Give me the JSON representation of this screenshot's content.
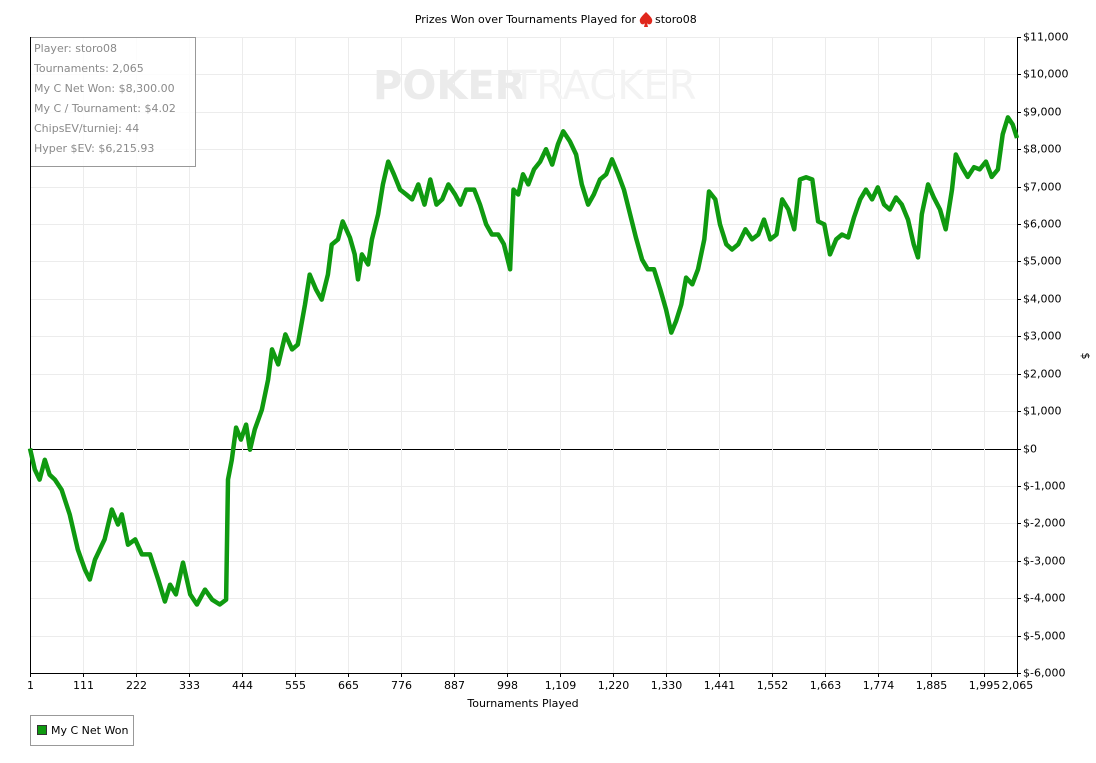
{
  "chart_data": {
    "type": "line",
    "title": "Prizes Won over Tournaments Played for",
    "player": "storo08",
    "watermark": [
      "POKER",
      "TRACKER"
    ],
    "stats_box": [
      "Player: storo08",
      "Tournaments: 2,065",
      "My C Net Won: $8,300.00",
      "My C / Tournament: $4.02",
      "ChipsEV/turniej: 44",
      "Hyper $EV: $6,215.93"
    ],
    "x_label": "Tournaments Played",
    "y_label": "$",
    "xlim": [
      1,
      2065
    ],
    "ylim": [
      -6000,
      11000
    ],
    "grid": true,
    "legend": "bottom-left",
    "xticks": [
      1,
      111,
      222,
      333,
      444,
      555,
      665,
      776,
      887,
      998,
      {
        "value": 1109,
        "label": "1,109"
      },
      {
        "value": 1220,
        "label": "1,220"
      },
      {
        "value": 1330,
        "label": "1,330"
      },
      {
        "value": 1441,
        "label": "1,441"
      },
      {
        "value": 1552,
        "label": "1,552"
      },
      {
        "value": 1663,
        "label": "1,663"
      },
      {
        "value": 1774,
        "label": "1,774"
      },
      {
        "value": 1885,
        "label": "1,885"
      },
      {
        "value": 1995,
        "label": "1,995"
      },
      {
        "value": 2065,
        "label": "2,065"
      }
    ],
    "yticks": [
      {
        "value": 11000,
        "label": "$11,000"
      },
      {
        "value": 10000,
        "label": "$10,000"
      },
      {
        "value": 9000,
        "label": "$9,000"
      },
      {
        "value": 8000,
        "label": "$8,000"
      },
      {
        "value": 7000,
        "label": "$7,000"
      },
      {
        "value": 6000,
        "label": "$6,000"
      },
      {
        "value": 5000,
        "label": "$5,000"
      },
      {
        "value": 4000,
        "label": "$4,000"
      },
      {
        "value": 3000,
        "label": "$3,000"
      },
      {
        "value": 2000,
        "label": "$2,000"
      },
      {
        "value": 1000,
        "label": "$1,000"
      },
      {
        "value": 0,
        "label": "$0"
      },
      {
        "value": -1000,
        "label": "$-1,000"
      },
      {
        "value": -2000,
        "label": "$-2,000"
      },
      {
        "value": -3000,
        "label": "$-3,000"
      },
      {
        "value": -4000,
        "label": "$-4,000"
      },
      {
        "value": -5000,
        "label": "$-5,000"
      },
      {
        "value": -6000,
        "label": "$-6,000"
      }
    ],
    "x": [
      1,
      11,
      21,
      32,
      42,
      53,
      67,
      84,
      101,
      116,
      126,
      137,
      147,
      157,
      172,
      185,
      193,
      206,
      221,
      235,
      252,
      269,
      283,
      294,
      306,
      321,
      336,
      350,
      367,
      382,
      398,
      411,
      415,
      423,
      432,
      442,
      453,
      461,
      471,
      486,
      499,
      507,
      520,
      535,
      549,
      561,
      576,
      586,
      599,
      611,
      624,
      632,
      645,
      655,
      670,
      680,
      687,
      695,
      708,
      716,
      729,
      739,
      750,
      762,
      775,
      788,
      800,
      813,
      826,
      838,
      851,
      863,
      876,
      890,
      901,
      913,
      930,
      942,
      955,
      967,
      980,
      992,
      1005,
      1012,
      1022,
      1032,
      1043,
      1055,
      1068,
      1080,
      1093,
      1105,
      1116,
      1130,
      1143,
      1155,
      1168,
      1180,
      1193,
      1206,
      1218,
      1231,
      1243,
      1256,
      1268,
      1281,
      1293,
      1306,
      1319,
      1331,
      1342,
      1352,
      1363,
      1373,
      1386,
      1398,
      1411,
      1421,
      1434,
      1444,
      1457,
      1469,
      1482,
      1497,
      1511,
      1524,
      1536,
      1549,
      1562,
      1574,
      1587,
      1599,
      1611,
      1624,
      1637,
      1649,
      1662,
      1674,
      1687,
      1699,
      1712,
      1724,
      1737,
      1749,
      1762,
      1774,
      1787,
      1799,
      1812,
      1824,
      1837,
      1849,
      1858,
      1866,
      1879,
      1891,
      1904,
      1916,
      1929,
      1937,
      1950,
      1962,
      1975,
      1987,
      2000,
      2012,
      2025,
      2035,
      2046,
      2056,
      2065
    ],
    "series": [
      {
        "name": "My C Net Won",
        "color": "#0f9a10",
        "values": [
          0,
          -560,
          -830,
          -300,
          -700,
          -830,
          -1100,
          -1760,
          -2700,
          -3240,
          -3500,
          -2970,
          -2700,
          -2430,
          -1630,
          -2030,
          -1760,
          -2570,
          -2430,
          -2830,
          -2830,
          -3500,
          -4090,
          -3640,
          -3900,
          -3050,
          -3900,
          -4170,
          -3770,
          -4040,
          -4170,
          -4040,
          -830,
          -300,
          560,
          240,
          640,
          -30,
          510,
          1040,
          1840,
          2650,
          2250,
          3050,
          2650,
          2780,
          3850,
          4650,
          4250,
          3980,
          4650,
          5450,
          5590,
          6070,
          5640,
          5190,
          4520,
          5190,
          4920,
          5590,
          6260,
          7060,
          7670,
          7330,
          6920,
          6790,
          6660,
          7060,
          6520,
          7190,
          6520,
          6660,
          7060,
          6790,
          6520,
          6920,
          6920,
          6520,
          5990,
          5720,
          5720,
          5460,
          4790,
          6920,
          6790,
          7330,
          7060,
          7460,
          7670,
          8000,
          7590,
          8130,
          8480,
          8210,
          7860,
          7060,
          6520,
          6790,
          7190,
          7330,
          7730,
          7330,
          6920,
          6260,
          5640,
          5050,
          4790,
          4790,
          4250,
          3720,
          3100,
          3400,
          3850,
          4570,
          4390,
          4790,
          5590,
          6870,
          6660,
          5990,
          5460,
          5320,
          5460,
          5860,
          5590,
          5720,
          6120,
          5590,
          5720,
          6660,
          6390,
          5860,
          7190,
          7250,
          7190,
          6070,
          5990,
          5190,
          5590,
          5720,
          5640,
          6170,
          6660,
          6920,
          6660,
          6980,
          6520,
          6390,
          6710,
          6520,
          6120,
          5460,
          5110,
          6260,
          7060,
          6710,
          6390,
          5860,
          6920,
          7860,
          7520,
          7260,
          7520,
          7460,
          7670,
          7260,
          7460,
          8400,
          8850,
          8660,
          8300
        ]
      }
    ]
  }
}
